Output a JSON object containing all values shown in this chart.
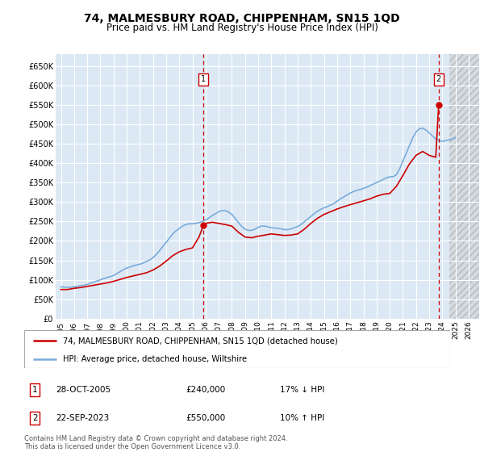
{
  "title": "74, MALMESBURY ROAD, CHIPPENHAM, SN15 1QD",
  "subtitle": "Price paid vs. HM Land Registry's House Price Index (HPI)",
  "title_fontsize": 10,
  "subtitle_fontsize": 8.5,
  "ylabel_ticks": [
    "£0",
    "£50K",
    "£100K",
    "£150K",
    "£200K",
    "£250K",
    "£300K",
    "£350K",
    "£400K",
    "£450K",
    "£500K",
    "£550K",
    "£600K",
    "£650K"
  ],
  "ytick_values": [
    0,
    50000,
    100000,
    150000,
    200000,
    250000,
    300000,
    350000,
    400000,
    450000,
    500000,
    550000,
    600000,
    650000
  ],
  "ylim": [
    0,
    680000
  ],
  "xlim_min": 1994.6,
  "xlim_max": 2026.8,
  "xtick_years": [
    1995,
    1996,
    1997,
    1998,
    1999,
    2000,
    2001,
    2002,
    2003,
    2004,
    2005,
    2006,
    2007,
    2008,
    2009,
    2010,
    2011,
    2012,
    2013,
    2014,
    2015,
    2016,
    2017,
    2018,
    2019,
    2020,
    2021,
    2022,
    2023,
    2024,
    2025,
    2026
  ],
  "plot_bg_color": "#dce9f5",
  "fig_bg_color": "#ffffff",
  "grid_color": "#ffffff",
  "hpi_line_color": "#7aabdb",
  "price_line_color": "#cc0000",
  "vline_color": "#cc0000",
  "hatch_start": 2024.5,
  "sale1_x": 2005.83,
  "sale1_y": 240000,
  "sale2_x": 2023.72,
  "sale2_y": 550000,
  "legend_line1": "74, MALMESBURY ROAD, CHIPPENHAM, SN15 1QD (detached house)",
  "legend_line2": "HPI: Average price, detached house, Wiltshire",
  "annotation1_label": "1",
  "annotation1_date": "28-OCT-2005",
  "annotation1_price": "£240,000",
  "annotation1_hpi": "17% ↓ HPI",
  "annotation2_label": "2",
  "annotation2_date": "22-SEP-2023",
  "annotation2_price": "£550,000",
  "annotation2_hpi": "10% ↑ HPI",
  "footer1": "Contains HM Land Registry data © Crown copyright and database right 2024.",
  "footer2": "This data is licensed under the Open Government Licence v3.0.",
  "hpi_data_x": [
    1995.0,
    1995.25,
    1995.5,
    1995.75,
    1996.0,
    1996.25,
    1996.5,
    1996.75,
    1997.0,
    1997.25,
    1997.5,
    1997.75,
    1998.0,
    1998.25,
    1998.5,
    1998.75,
    1999.0,
    1999.25,
    1999.5,
    1999.75,
    2000.0,
    2000.25,
    2000.5,
    2000.75,
    2001.0,
    2001.25,
    2001.5,
    2001.75,
    2002.0,
    2002.25,
    2002.5,
    2002.75,
    2003.0,
    2003.25,
    2003.5,
    2003.75,
    2004.0,
    2004.25,
    2004.5,
    2004.75,
    2005.0,
    2005.25,
    2005.5,
    2005.75,
    2006.0,
    2006.25,
    2006.5,
    2006.75,
    2007.0,
    2007.25,
    2007.5,
    2007.75,
    2008.0,
    2008.25,
    2008.5,
    2008.75,
    2009.0,
    2009.25,
    2009.5,
    2009.75,
    2010.0,
    2010.25,
    2010.5,
    2010.75,
    2011.0,
    2011.25,
    2011.5,
    2011.75,
    2012.0,
    2012.25,
    2012.5,
    2012.75,
    2013.0,
    2013.25,
    2013.5,
    2013.75,
    2014.0,
    2014.25,
    2014.5,
    2014.75,
    2015.0,
    2015.25,
    2015.5,
    2015.75,
    2016.0,
    2016.25,
    2016.5,
    2016.75,
    2017.0,
    2017.25,
    2017.5,
    2017.75,
    2018.0,
    2018.25,
    2018.5,
    2018.75,
    2019.0,
    2019.25,
    2019.5,
    2019.75,
    2020.0,
    2020.25,
    2020.5,
    2020.75,
    2021.0,
    2021.25,
    2021.5,
    2021.75,
    2022.0,
    2022.25,
    2022.5,
    2022.75,
    2023.0,
    2023.25,
    2023.5,
    2023.75,
    2024.0,
    2024.25,
    2024.5,
    2024.75,
    2025.0
  ],
  "hpi_data_y": [
    82000,
    81000,
    80500,
    81000,
    82000,
    83000,
    85000,
    86000,
    88000,
    91000,
    94000,
    97000,
    100000,
    103000,
    106000,
    108000,
    111000,
    116000,
    121000,
    126000,
    130000,
    133000,
    136000,
    138000,
    140000,
    143000,
    147000,
    151000,
    157000,
    165000,
    175000,
    186000,
    196000,
    207000,
    218000,
    226000,
    232000,
    238000,
    242000,
    244000,
    244000,
    245000,
    247000,
    250000,
    254000,
    259000,
    265000,
    270000,
    275000,
    278000,
    278000,
    274000,
    268000,
    258000,
    247000,
    237000,
    230000,
    227000,
    227000,
    230000,
    235000,
    238000,
    238000,
    236000,
    234000,
    233000,
    232000,
    231000,
    229000,
    229000,
    231000,
    234000,
    237000,
    242000,
    249000,
    256000,
    263000,
    270000,
    276000,
    281000,
    285000,
    288000,
    292000,
    296000,
    302000,
    308000,
    313000,
    318000,
    323000,
    327000,
    330000,
    332000,
    335000,
    338000,
    342000,
    346000,
    350000,
    354000,
    358000,
    362000,
    365000,
    365000,
    370000,
    385000,
    405000,
    425000,
    445000,
    465000,
    480000,
    488000,
    490000,
    485000,
    478000,
    470000,
    462000,
    458000,
    456000,
    458000,
    460000,
    462000,
    465000
  ],
  "price_data_x": [
    1995.0,
    1995.5,
    1996.0,
    1996.5,
    1997.0,
    1997.5,
    1998.0,
    1998.5,
    1999.0,
    1999.5,
    2000.0,
    2000.5,
    2001.0,
    2001.5,
    2002.0,
    2002.5,
    2003.0,
    2003.5,
    2004.0,
    2004.5,
    2005.0,
    2005.5,
    2005.83,
    2006.0,
    2006.5,
    2007.0,
    2007.5,
    2008.0,
    2008.5,
    2009.0,
    2009.5,
    2010.0,
    2010.5,
    2011.0,
    2011.5,
    2012.0,
    2012.5,
    2013.0,
    2013.5,
    2014.0,
    2014.5,
    2015.0,
    2015.5,
    2016.0,
    2016.5,
    2017.0,
    2017.5,
    2018.0,
    2018.5,
    2019.0,
    2019.5,
    2020.0,
    2020.5,
    2021.0,
    2021.5,
    2022.0,
    2022.5,
    2023.0,
    2023.5,
    2023.72
  ],
  "price_data_y": [
    75000,
    75000,
    78000,
    80000,
    83000,
    86000,
    89000,
    92000,
    96000,
    101000,
    106000,
    110000,
    114000,
    118000,
    125000,
    135000,
    148000,
    162000,
    172000,
    178000,
    182000,
    210000,
    240000,
    245000,
    248000,
    245000,
    242000,
    238000,
    222000,
    210000,
    208000,
    212000,
    215000,
    218000,
    216000,
    214000,
    215000,
    218000,
    230000,
    245000,
    258000,
    268000,
    275000,
    282000,
    288000,
    293000,
    298000,
    303000,
    308000,
    315000,
    320000,
    322000,
    340000,
    368000,
    398000,
    420000,
    430000,
    420000,
    415000,
    550000
  ]
}
